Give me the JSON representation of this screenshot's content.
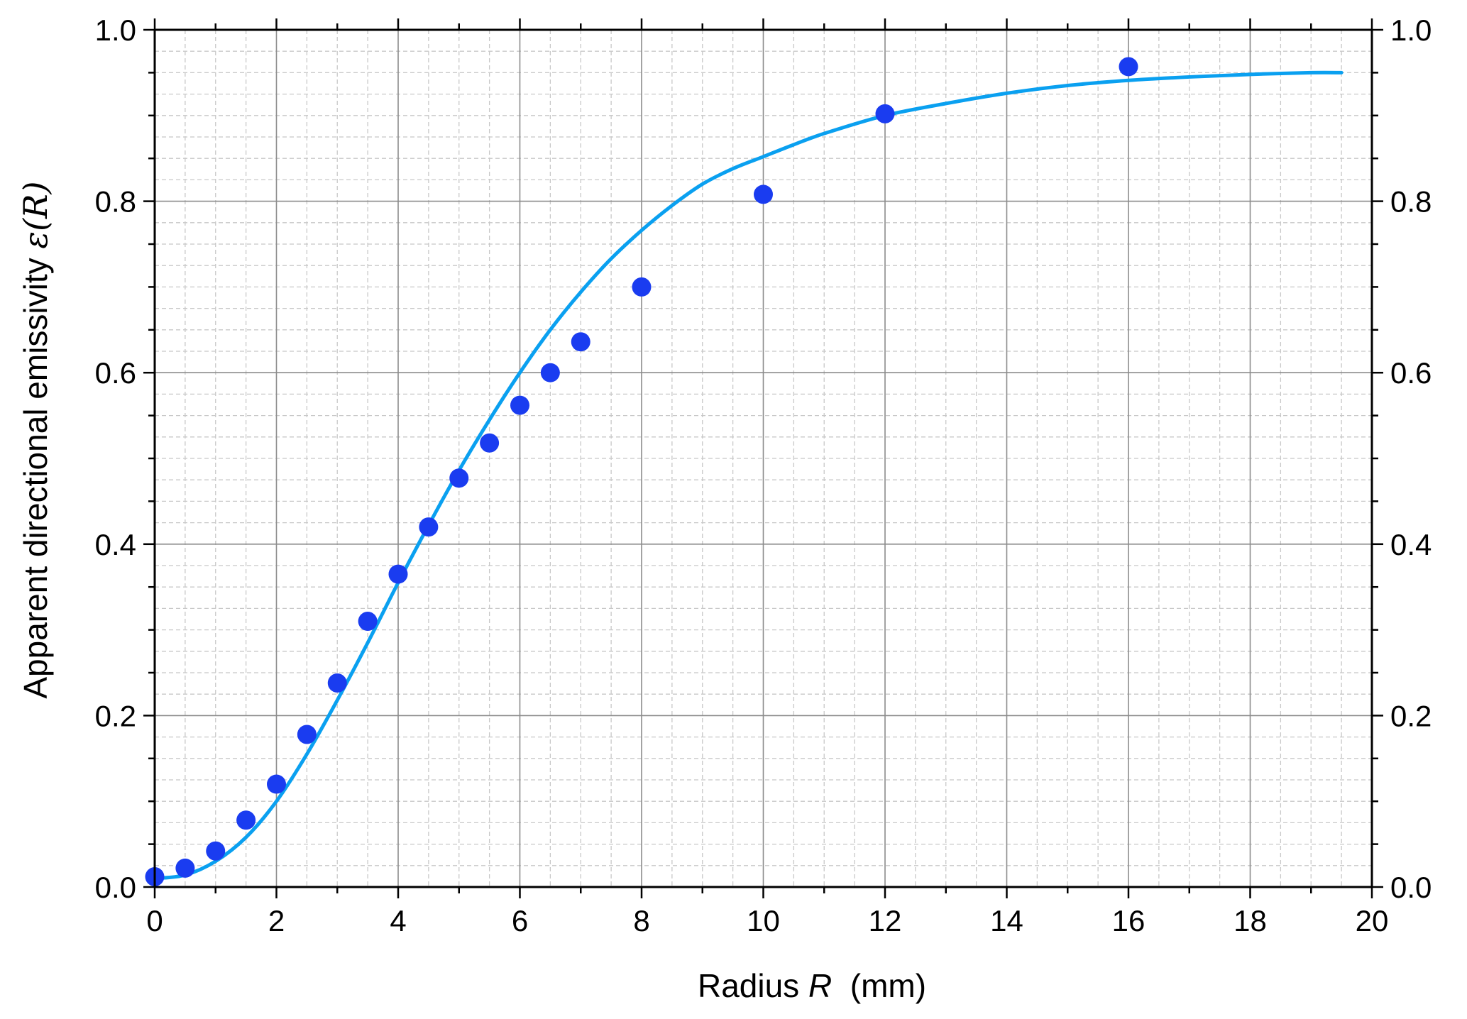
{
  "chart_data": {
    "type": "scatter",
    "title": "",
    "xlabel": "Radius",
    "xlabel_var": "R",
    "xlabel_unit": "(mm)",
    "ylabel": "Apparent directional emissivity",
    "ylabel_var": "ε(R)",
    "xlim": [
      0,
      20
    ],
    "ylim": [
      0,
      1.0
    ],
    "x_ticks": [
      "0",
      "2",
      "4",
      "6",
      "8",
      "10",
      "12",
      "14",
      "16",
      "18",
      "20"
    ],
    "y_ticks": [
      "0.0",
      "0.2",
      "0.4",
      "0.6",
      "0.8",
      "1.0"
    ],
    "grid": "major solid, minor dashed",
    "right_axis_mirrored": true,
    "series": [
      {
        "kind": "points",
        "color": "#1a3cf0",
        "x": [
          0,
          0.5,
          1,
          1.5,
          2,
          2.5,
          3,
          3.5,
          4,
          4.5,
          5,
          5.5,
          6,
          6.5,
          7,
          8,
          10,
          12,
          16
        ],
        "y": [
          0.012,
          0.022,
          0.042,
          0.078,
          0.12,
          0.178,
          0.238,
          0.31,
          0.365,
          0.42,
          0.477,
          0.518,
          0.562,
          0.6,
          0.636,
          0.7,
          0.808,
          0.902,
          0.957
        ]
      },
      {
        "kind": "curve",
        "color": "#0aa0f0",
        "x": [
          0,
          0.5,
          1,
          1.5,
          2,
          2.5,
          3,
          3.5,
          4,
          4.5,
          5,
          5.5,
          6,
          6.5,
          7,
          7.5,
          8,
          8.5,
          9,
          9.5,
          10,
          10.5,
          11,
          12,
          13,
          14,
          15,
          16,
          17,
          18,
          19,
          19.5
        ],
        "y": [
          0.01,
          0.014,
          0.03,
          0.058,
          0.1,
          0.155,
          0.218,
          0.285,
          0.355,
          0.422,
          0.486,
          0.545,
          0.6,
          0.65,
          0.694,
          0.733,
          0.766,
          0.795,
          0.82,
          0.838,
          0.852,
          0.866,
          0.879,
          0.9,
          0.914,
          0.926,
          0.935,
          0.941,
          0.945,
          0.948,
          0.95,
          0.95
        ]
      }
    ]
  }
}
